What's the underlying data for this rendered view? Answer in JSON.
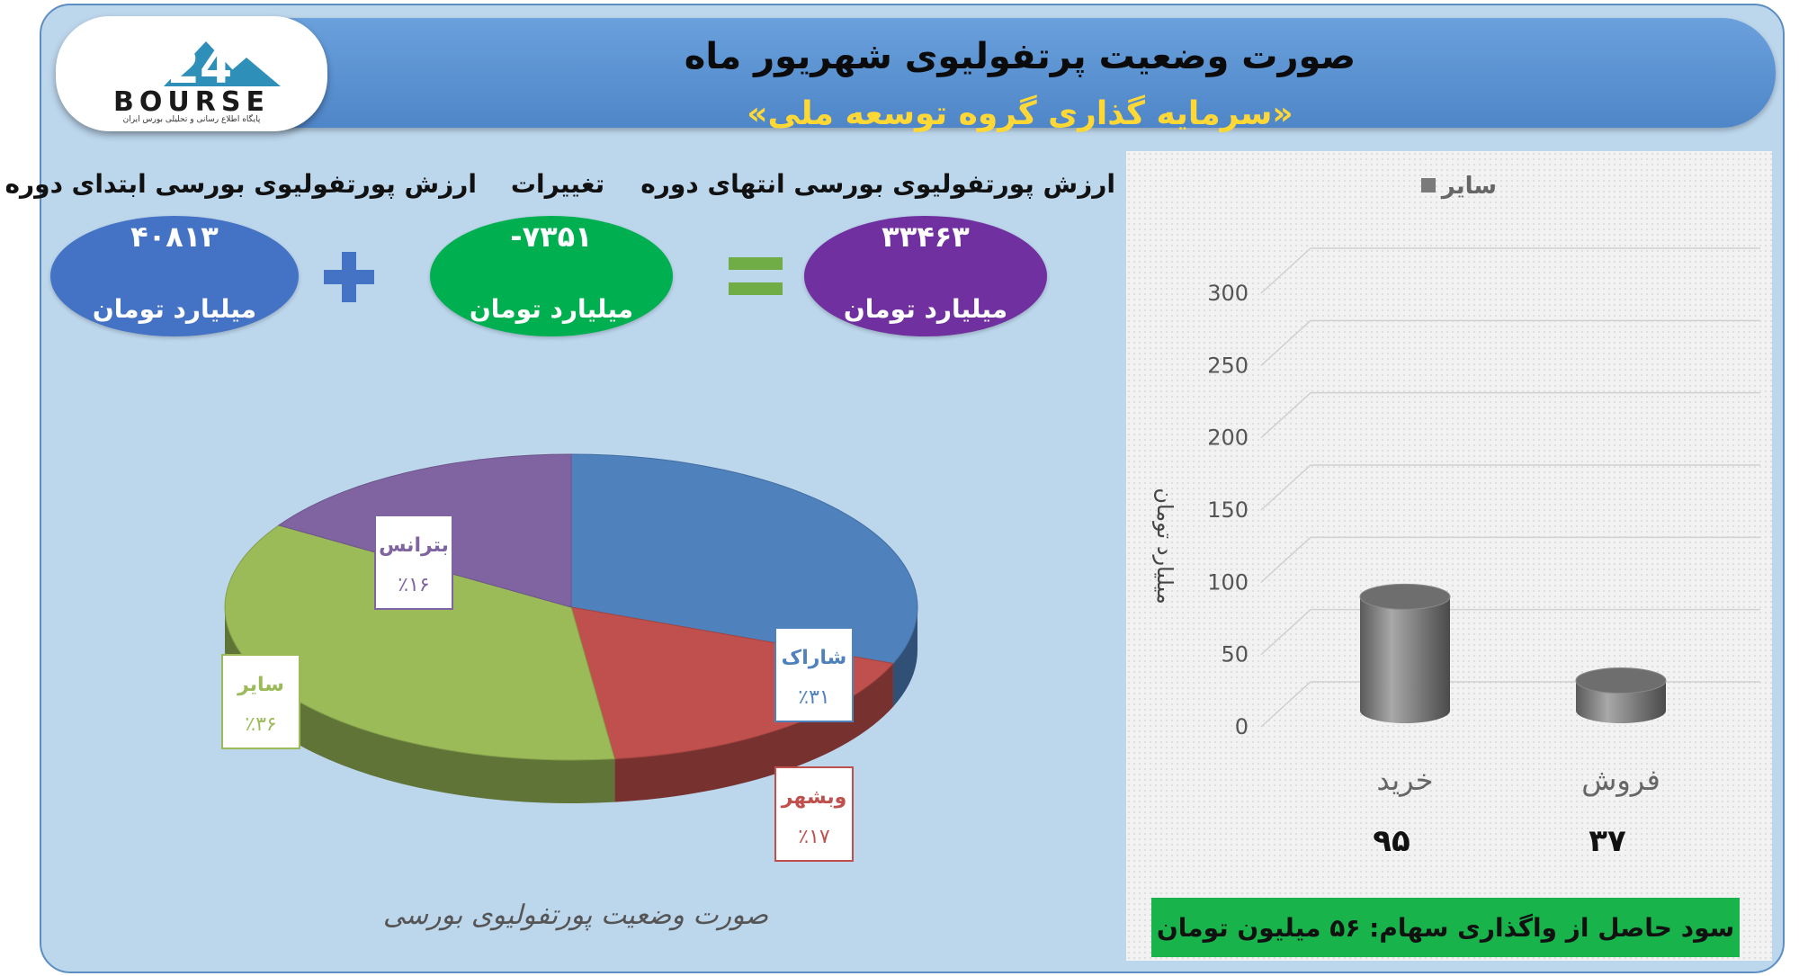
{
  "header": {
    "title": "صورت وضعیت پرتفولیوی شهریور ماه",
    "subtitle": "«سرمایه گذاری گروه توسعه ملی»",
    "logo_text": "BOURSE",
    "logo_tagline": "پایگاه اطلاع رسانی و تحلیلی بورس ایران"
  },
  "summary": {
    "start": {
      "label": "ارزش پورتفولیوی بورسی ابتدای دوره",
      "value": "۴۰۸۱۳",
      "unit": "میلیارد تومان",
      "color": "#4472c4"
    },
    "change": {
      "label": "تغییرات",
      "value": "-۷۳۵۱",
      "unit": "میلیارد تومان",
      "color": "#00b050"
    },
    "end": {
      "label": "ارزش پورتفولیوی بورسی انتهای دوره",
      "value": "۳۳۴۶۳",
      "unit": "میلیارد تومان",
      "color": "#7030a0"
    },
    "plus_color": "#4472c4",
    "equals_color": "#70ad47"
  },
  "pie_caption": "صورت وضعیت پورتفولیوی بورسی",
  "bar_caption_amounts": [
    "۹۵",
    "۳۷"
  ],
  "profit_text": "سود حاصل از واگذاری سهام: ۵۶ میلیون تومان",
  "chart_data": [
    {
      "type": "pie",
      "categories": [
        "شاراک",
        "وبشهر",
        "سایر",
        "بترانس"
      ],
      "values": [
        31,
        17,
        36,
        16
      ],
      "value_labels": [
        "٪۳۱",
        "٪۱۷",
        "٪۳۶",
        "٪۱۶"
      ],
      "colors": [
        "#4f81bd",
        "#c0504d",
        "#9bbb59",
        "#8064a2"
      ],
      "title": ""
    },
    {
      "type": "bar",
      "categories": [
        "خرید",
        "فروش"
      ],
      "series": [
        {
          "name": "سایر",
          "values": [
            95,
            37
          ]
        }
      ],
      "ylabel": "میلیارد تومان",
      "ylim": [
        0,
        300
      ],
      "yticks": [
        0,
        50,
        100,
        150,
        200,
        250,
        300
      ],
      "legend": "top",
      "grid": true,
      "bar_color": "#7a7a7a"
    }
  ]
}
